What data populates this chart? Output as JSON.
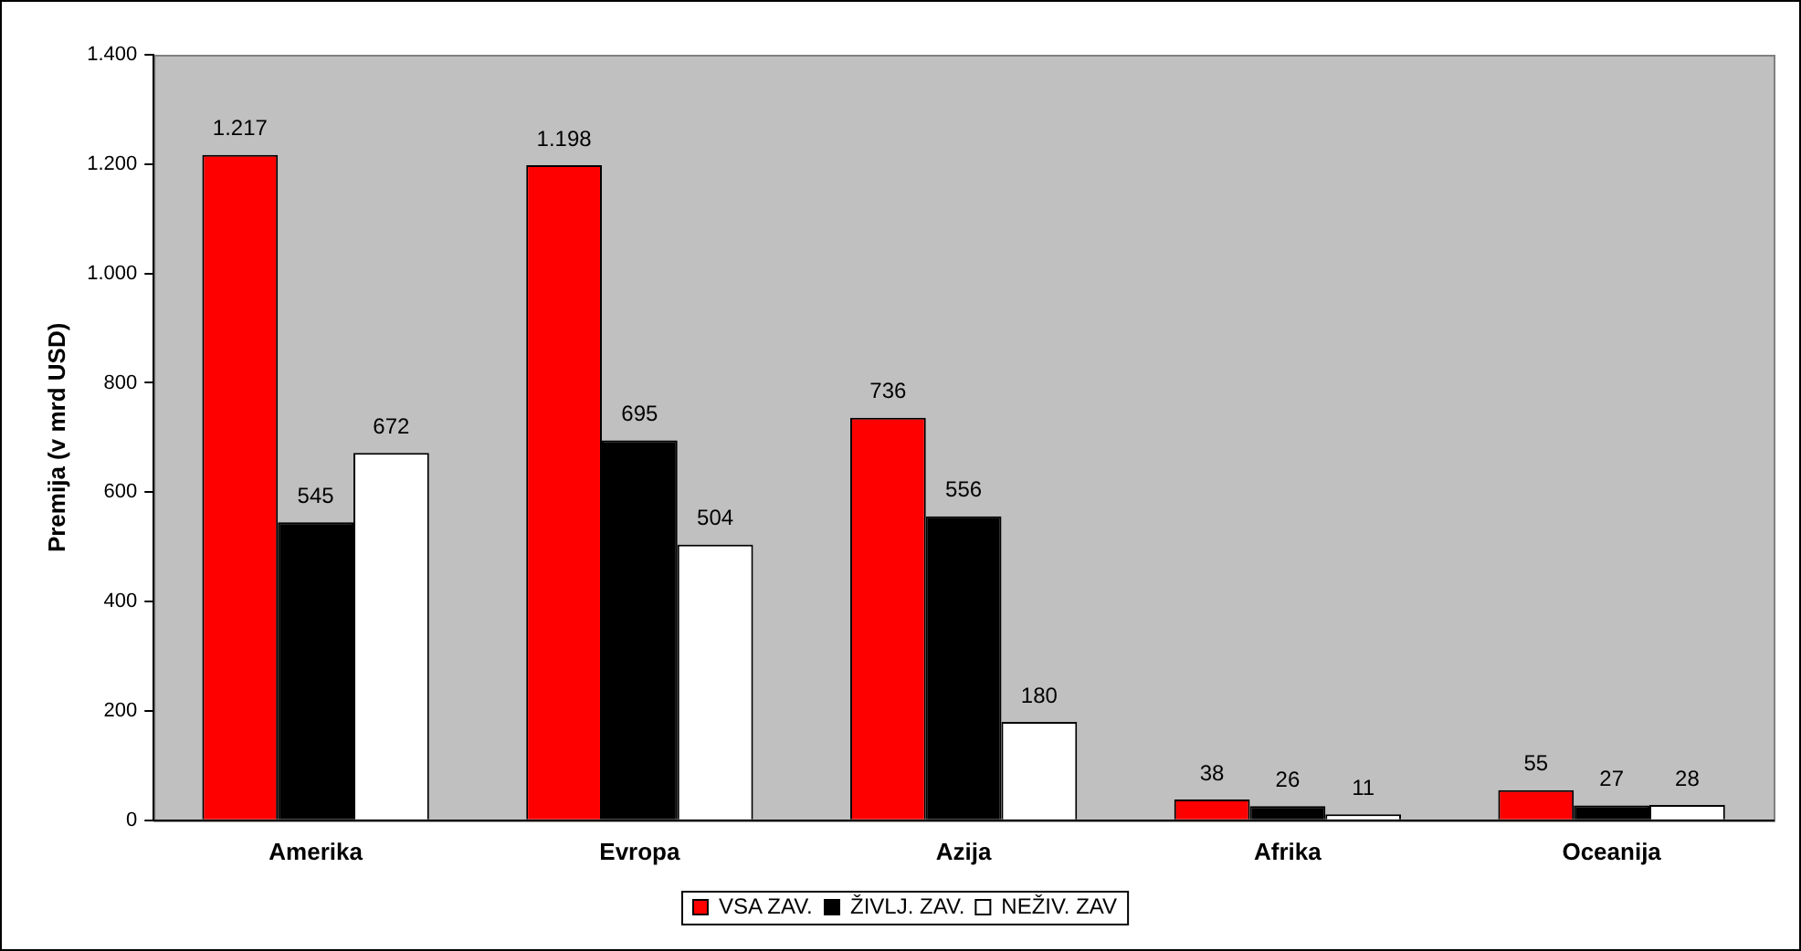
{
  "chart_data": {
    "type": "bar",
    "ylabel": "Premija (v mrd USD)",
    "categories": [
      "Amerika",
      "Evropa",
      "Azija",
      "Afrika",
      "Oceanija"
    ],
    "series": [
      {
        "name": "VSA ZAV.",
        "color": "#ff0000",
        "values": [
          1217,
          1198,
          736,
          38,
          55
        ],
        "value_labels": [
          "1.217",
          "1.198",
          "736",
          "38",
          "55"
        ]
      },
      {
        "name": "ŽIVLJ. ZAV.",
        "color": "#000000",
        "values": [
          545,
          695,
          556,
          26,
          27
        ],
        "value_labels": [
          "545",
          "695",
          "556",
          "26",
          "27"
        ]
      },
      {
        "name": "NEŽIV. ZAV",
        "color": "#ffffff",
        "values": [
          672,
          504,
          180,
          11,
          28
        ],
        "value_labels": [
          "672",
          "504",
          "180",
          "11",
          "28"
        ]
      }
    ],
    "ylim": [
      0,
      1400
    ],
    "yticks": [
      0,
      {
        "value": 200,
        "label": "200"
      },
      {
        "value": 400,
        "label": "400"
      },
      {
        "value": 600,
        "label": "600"
      },
      {
        "value": 800,
        "label": "800"
      },
      {
        "value": 1000,
        "label": "1.000"
      },
      {
        "value": 1200,
        "label": "1.200"
      },
      {
        "value": 1400,
        "label": "1.400"
      }
    ],
    "grid": false,
    "legend": "bottom"
  }
}
